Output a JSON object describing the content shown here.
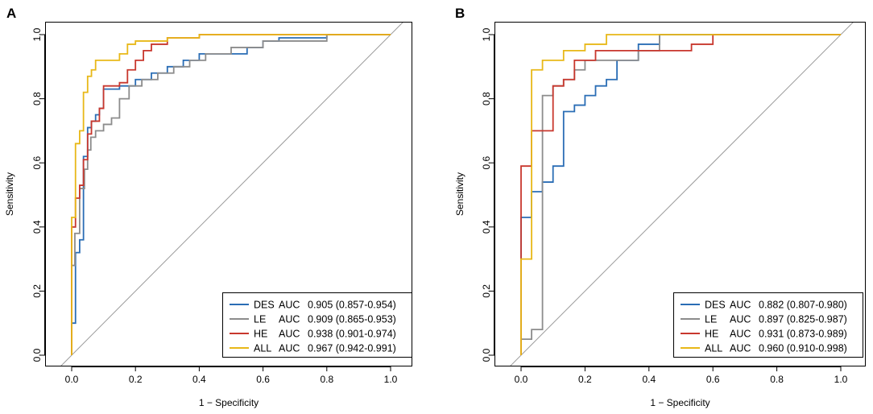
{
  "chart_data": [
    {
      "panel": "A",
      "type": "line",
      "xlabel": "1 − Specificity",
      "ylabel": "Sensitivity",
      "xlim": [
        0,
        1
      ],
      "ylim": [
        0,
        1
      ],
      "xticks": [
        "0.0",
        "0.2",
        "0.4",
        "0.6",
        "0.8",
        "1.0"
      ],
      "yticks": [
        "0.0",
        "0.2",
        "0.4",
        "0.6",
        "0.8",
        "1.0"
      ],
      "reference_line": true,
      "legend_position": "bottom-right",
      "series": [
        {
          "name": "DES",
          "color": "#2a6db5",
          "legend": {
            "label": "DES",
            "auc_label": "AUC",
            "auc": "0.905 (0.857-0.954)"
          },
          "x": [
            0,
            0,
            0.012,
            0.012,
            0.025,
            0.025,
            0.037,
            0.037,
            0.05,
            0.05,
            0.062,
            0.062,
            0.075,
            0.075,
            0.087,
            0.087,
            0.1,
            0.1,
            0.15,
            0.15,
            0.2,
            0.2,
            0.25,
            0.25,
            0.3,
            0.3,
            0.35,
            0.35,
            0.4,
            0.4,
            0.55,
            0.55,
            0.6,
            0.6,
            0.65,
            0.65,
            0.8,
            0.8,
            1.0
          ],
          "y": [
            0,
            0.1,
            0.1,
            0.32,
            0.32,
            0.36,
            0.36,
            0.62,
            0.62,
            0.71,
            0.71,
            0.73,
            0.73,
            0.75,
            0.75,
            0.77,
            0.77,
            0.83,
            0.83,
            0.84,
            0.84,
            0.86,
            0.86,
            0.88,
            0.88,
            0.9,
            0.9,
            0.92,
            0.92,
            0.94,
            0.94,
            0.96,
            0.96,
            0.98,
            0.98,
            0.99,
            0.99,
            1.0,
            1.0
          ]
        },
        {
          "name": "LE",
          "color": "#8c8c8c",
          "legend": {
            "label": "LE",
            "auc_label": "AUC",
            "auc": "0.909 (0.865-0.953)"
          },
          "x": [
            0,
            0,
            0.01,
            0.01,
            0.025,
            0.025,
            0.04,
            0.04,
            0.05,
            0.05,
            0.06,
            0.06,
            0.075,
            0.075,
            0.1,
            0.1,
            0.125,
            0.125,
            0.15,
            0.15,
            0.18,
            0.18,
            0.22,
            0.22,
            0.27,
            0.27,
            0.32,
            0.32,
            0.37,
            0.37,
            0.42,
            0.42,
            0.5,
            0.5,
            0.6,
            0.6,
            0.8,
            0.8,
            1.0
          ],
          "y": [
            0,
            0.28,
            0.28,
            0.38,
            0.38,
            0.52,
            0.52,
            0.58,
            0.58,
            0.64,
            0.64,
            0.68,
            0.68,
            0.7,
            0.7,
            0.72,
            0.72,
            0.74,
            0.74,
            0.8,
            0.8,
            0.84,
            0.84,
            0.86,
            0.86,
            0.88,
            0.88,
            0.9,
            0.9,
            0.92,
            0.92,
            0.94,
            0.94,
            0.96,
            0.96,
            0.98,
            0.98,
            1.0,
            1.0
          ]
        },
        {
          "name": "HE",
          "color": "#c8372d",
          "legend": {
            "label": "HE",
            "auc_label": "AUC",
            "auc": "0.938 (0.901-0.974)"
          },
          "x": [
            0,
            0,
            0.012,
            0.012,
            0.025,
            0.025,
            0.037,
            0.037,
            0.05,
            0.05,
            0.062,
            0.062,
            0.087,
            0.087,
            0.1,
            0.1,
            0.15,
            0.15,
            0.175,
            0.175,
            0.2,
            0.2,
            0.225,
            0.225,
            0.25,
            0.25,
            0.3,
            0.3,
            0.4,
            0.4,
            0.6,
            0.6,
            1.0
          ],
          "y": [
            0,
            0.4,
            0.4,
            0.49,
            0.49,
            0.53,
            0.53,
            0.61,
            0.61,
            0.69,
            0.69,
            0.73,
            0.73,
            0.77,
            0.77,
            0.84,
            0.84,
            0.85,
            0.85,
            0.89,
            0.89,
            0.92,
            0.92,
            0.95,
            0.95,
            0.97,
            0.97,
            0.99,
            0.99,
            1.0,
            1.0,
            1.0,
            1.0
          ]
        },
        {
          "name": "ALL",
          "color": "#e8b818",
          "legend": {
            "label": "ALL",
            "auc_label": "AUC",
            "auc": "0.967 (0.942-0.991)"
          },
          "x": [
            0,
            0,
            0.012,
            0.012,
            0.025,
            0.025,
            0.037,
            0.037,
            0.05,
            0.05,
            0.062,
            0.062,
            0.075,
            0.075,
            0.15,
            0.15,
            0.175,
            0.175,
            0.2,
            0.2,
            0.3,
            0.3,
            0.4,
            0.4,
            1.0
          ],
          "y": [
            0,
            0.43,
            0.43,
            0.66,
            0.66,
            0.7,
            0.7,
            0.82,
            0.82,
            0.87,
            0.87,
            0.89,
            0.89,
            0.92,
            0.92,
            0.94,
            0.94,
            0.97,
            0.97,
            0.98,
            0.98,
            0.99,
            0.99,
            1.0,
            1.0
          ]
        }
      ]
    },
    {
      "panel": "B",
      "type": "line",
      "xlabel": "1 − Specificity",
      "ylabel": "Sensitivity",
      "xlim": [
        0,
        1
      ],
      "ylim": [
        0,
        1
      ],
      "xticks": [
        "0.0",
        "0.2",
        "0.4",
        "0.6",
        "0.8",
        "1.0"
      ],
      "yticks": [
        "0.0",
        "0.2",
        "0.4",
        "0.6",
        "0.8",
        "1.0"
      ],
      "reference_line": true,
      "legend_position": "bottom-right",
      "series": [
        {
          "name": "DES",
          "color": "#2a6db5",
          "legend": {
            "label": "DES",
            "auc_label": "AUC",
            "auc": "0.882 (0.807-0.980)"
          },
          "x": [
            0,
            0,
            0.033,
            0.033,
            0.067,
            0.067,
            0.1,
            0.1,
            0.133,
            0.133,
            0.167,
            0.167,
            0.2,
            0.2,
            0.233,
            0.233,
            0.267,
            0.267,
            0.3,
            0.3,
            0.367,
            0.367,
            0.433,
            0.433,
            1.0
          ],
          "y": [
            0,
            0.43,
            0.43,
            0.51,
            0.51,
            0.54,
            0.54,
            0.59,
            0.59,
            0.76,
            0.76,
            0.78,
            0.78,
            0.81,
            0.81,
            0.84,
            0.84,
            0.86,
            0.86,
            0.92,
            0.92,
            0.97,
            0.97,
            1.0,
            1.0
          ]
        },
        {
          "name": "LE",
          "color": "#8c8c8c",
          "legend": {
            "label": "LE",
            "auc_label": "AUC",
            "auc": "0.897 (0.825-0.987)"
          },
          "x": [
            0,
            0,
            0.033,
            0.033,
            0.067,
            0.067,
            0.1,
            0.1,
            0.133,
            0.133,
            0.167,
            0.167,
            0.2,
            0.2,
            0.367,
            0.367,
            0.433,
            0.433,
            1.0
          ],
          "y": [
            0,
            0.05,
            0.05,
            0.08,
            0.08,
            0.81,
            0.81,
            0.84,
            0.84,
            0.86,
            0.86,
            0.89,
            0.89,
            0.92,
            0.92,
            0.95,
            0.95,
            1.0,
            1.0
          ]
        },
        {
          "name": "HE",
          "color": "#c8372d",
          "legend": {
            "label": "HE",
            "auc_label": "AUC",
            "auc": "0.931 (0.873-0.989)"
          },
          "x": [
            0,
            0,
            0.033,
            0.033,
            0.1,
            0.1,
            0.133,
            0.133,
            0.167,
            0.167,
            0.233,
            0.233,
            0.533,
            0.533,
            0.6,
            0.6,
            1.0
          ],
          "y": [
            0,
            0.59,
            0.59,
            0.7,
            0.7,
            0.84,
            0.84,
            0.86,
            0.86,
            0.92,
            0.92,
            0.95,
            0.95,
            0.97,
            0.97,
            1.0,
            1.0
          ]
        },
        {
          "name": "ALL",
          "color": "#e8b818",
          "legend": {
            "label": "ALL",
            "auc_label": "AUC",
            "auc": "0.960 (0.910-0.998)"
          },
          "x": [
            0,
            0,
            0.033,
            0.033,
            0.067,
            0.067,
            0.133,
            0.133,
            0.2,
            0.2,
            0.267,
            0.267,
            1.0
          ],
          "y": [
            0,
            0.3,
            0.3,
            0.89,
            0.89,
            0.92,
            0.92,
            0.95,
            0.95,
            0.97,
            0.97,
            1.0,
            1.0
          ]
        }
      ]
    }
  ]
}
